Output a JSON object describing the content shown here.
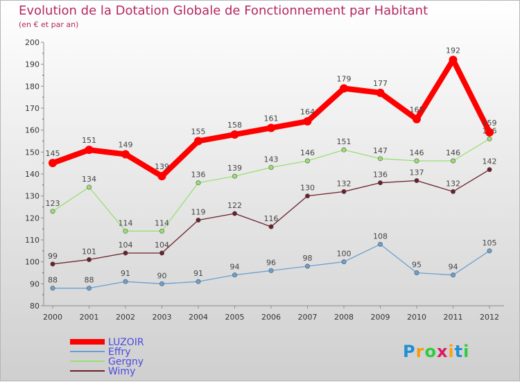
{
  "chart_data": {
    "type": "line",
    "title": "Evolution de la Dotation Globale de Fonctionnement par Habitant",
    "subtitle": "(en € et par an)",
    "xlabel": "",
    "ylabel": "",
    "x": [
      "2000",
      "2001",
      "2002",
      "2003",
      "2004",
      "2005",
      "2006",
      "2007",
      "2008",
      "2009",
      "2010",
      "2011",
      "2012"
    ],
    "ylim": [
      80,
      200
    ],
    "yticks": [
      80,
      90,
      100,
      110,
      120,
      130,
      140,
      150,
      160,
      170,
      180,
      190,
      200
    ],
    "grid": false,
    "legend": "bottom-left",
    "series": [
      {
        "name": "LUZOIR",
        "color": "#ff0000",
        "values": [
          145,
          151,
          149,
          139,
          155,
          158,
          161,
          164,
          179,
          177,
          165,
          192,
          159
        ]
      },
      {
        "name": "Effry",
        "color": "#6b9fd1",
        "values": [
          88,
          88,
          91,
          90,
          91,
          94,
          96,
          98,
          100,
          108,
          95,
          94,
          105
        ]
      },
      {
        "name": "Gergny",
        "color": "#98e070",
        "values": [
          123,
          134,
          114,
          114,
          136,
          139,
          143,
          146,
          151,
          147,
          146,
          146,
          156
        ]
      },
      {
        "name": "Wimy",
        "color": "#6b1f2b",
        "values": [
          99,
          101,
          104,
          104,
          119,
          122,
          116,
          130,
          132,
          136,
          137,
          132,
          142
        ]
      }
    ]
  },
  "logo": {
    "letters": [
      {
        "char": "P",
        "color": "#1f8fd4"
      },
      {
        "char": "r",
        "color": "#f39c12"
      },
      {
        "char": "o",
        "color": "#2ecc40"
      },
      {
        "char": "x",
        "color": "#d81b60"
      },
      {
        "char": "i",
        "color": "#ff9f1a"
      },
      {
        "char": "t",
        "color": "#1f8fd4"
      },
      {
        "char": "i",
        "color": "#2ecc40"
      }
    ]
  }
}
